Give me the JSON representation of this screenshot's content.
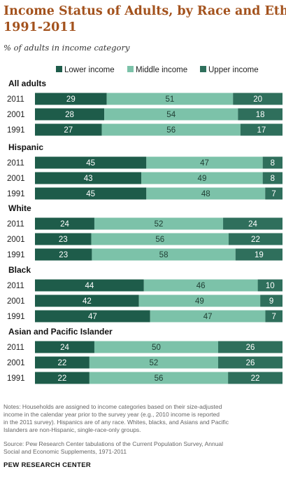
{
  "chart_data": {
    "type": "bar",
    "stacked": true,
    "orientation": "horizontal",
    "title_lines": [
      "Income Status of Adults, by Race and Ethnicity,",
      "1991-2011"
    ],
    "subtitle": "% of adults in income category",
    "legend": {
      "placement": "top",
      "items": [
        {
          "label": "Lower income",
          "color": "#1e5c4a"
        },
        {
          "label": "Middle income",
          "color": "#7cc2a9"
        },
        {
          "label": "Upper income",
          "color": "#2f6f5c"
        }
      ]
    },
    "groups": [
      {
        "name": "All adults",
        "rows": [
          {
            "year": "2011",
            "values": [
              29,
              51,
              20
            ]
          },
          {
            "year": "2001",
            "values": [
              28,
              54,
              18
            ]
          },
          {
            "year": "1991",
            "values": [
              27,
              56,
              17
            ]
          }
        ]
      },
      {
        "name": "Hispanic",
        "rows": [
          {
            "year": "2011",
            "values": [
              45,
              47,
              8
            ]
          },
          {
            "year": "2001",
            "values": [
              43,
              49,
              8
            ]
          },
          {
            "year": "1991",
            "values": [
              45,
              48,
              7
            ]
          }
        ]
      },
      {
        "name": "White",
        "rows": [
          {
            "year": "2011",
            "values": [
              24,
              52,
              24
            ]
          },
          {
            "year": "2001",
            "values": [
              23,
              56,
              22
            ]
          },
          {
            "year": "1991",
            "values": [
              23,
              58,
              19
            ]
          }
        ]
      },
      {
        "name": "Black",
        "rows": [
          {
            "year": "2011",
            "values": [
              44,
              46,
              10
            ]
          },
          {
            "year": "2001",
            "values": [
              42,
              49,
              9
            ]
          },
          {
            "year": "1991",
            "values": [
              47,
              47,
              7
            ]
          }
        ]
      },
      {
        "name": "Asian and Pacific Islander",
        "rows": [
          {
            "year": "2011",
            "values": [
              24,
              50,
              26
            ]
          },
          {
            "year": "2001",
            "values": [
              22,
              52,
              26
            ]
          },
          {
            "year": "1991",
            "values": [
              22,
              56,
              22
            ]
          }
        ]
      }
    ],
    "notes_lines": [
      "Notes: Households are assigned to income categories based on their size-adjusted",
      "income in the calendar year prior to the survey year (e.g., 2010 income is reported",
      "in the 2011 survey). Hispanics are of any race. Whites, blacks, and Asians and Pacific",
      "Islanders are non-Hispanic, single-race-only groups."
    ],
    "source_lines": [
      "Source: Pew Research Center tabulations of the Current Population Survey, Annual",
      "Social and Economic Supplements, 1971-2011"
    ],
    "footer": "PEW RESEARCH CENTER"
  }
}
